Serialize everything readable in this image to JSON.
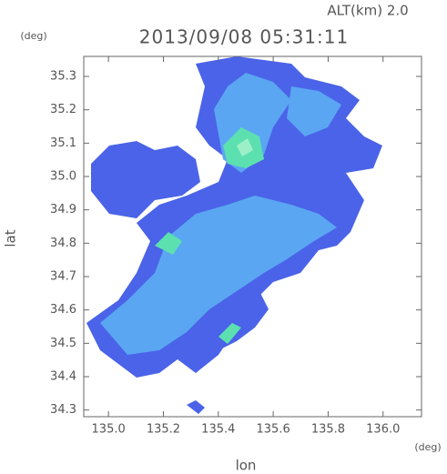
{
  "chart_data": {
    "type": "map",
    "title": "2013/09/08 05:31:11",
    "subtitle": "ALT(km) 2.0",
    "x_label": "lon",
    "y_label": "lat",
    "x_unit": "(deg)",
    "y_unit": "(deg)",
    "xlim": [
      134.91,
      136.14
    ],
    "ylim": [
      34.28,
      35.36
    ],
    "xticks": [
      {
        "value": 135,
        "label": "135.0"
      },
      135.2,
      135.4,
      135.6,
      135.8,
      {
        "value": 136,
        "label": "136.0"
      }
    ],
    "yticks": [
      34.3,
      34.4,
      34.5,
      34.6,
      34.7,
      34.8,
      34.9,
      {
        "value": 35,
        "label": "35.0"
      },
      35.1,
      35.2,
      35.3
    ]
  }
}
